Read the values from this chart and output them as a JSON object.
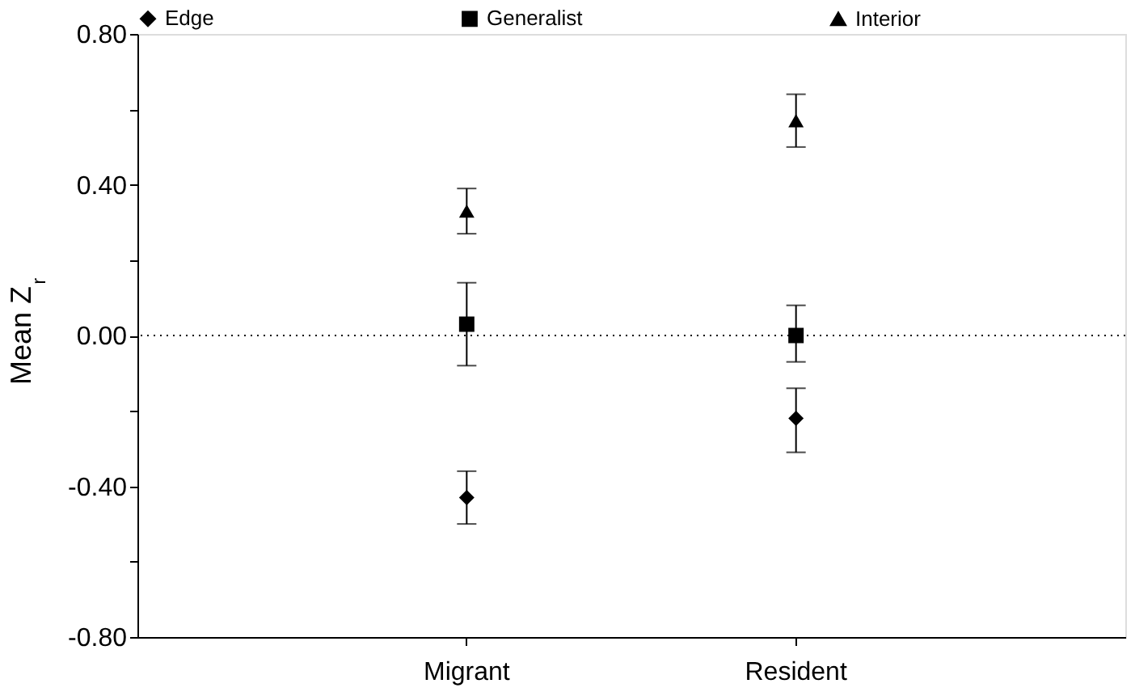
{
  "chart_data": {
    "type": "scatter",
    "ylabel": "Mean Z$_{r}$",
    "categories": [
      "Migrant",
      "Resident"
    ],
    "series": [
      {
        "name": "Edge",
        "color": "#000000",
        "marker": "diamond",
        "values": [
          -0.43,
          -0.22
        ],
        "errors": [
          [
            -0.5,
            -0.36
          ],
          [
            -0.31,
            -0.14
          ]
        ]
      },
      {
        "name": "Generalist",
        "color": "#000000",
        "marker": "square",
        "values": [
          0.03,
          0.0
        ],
        "errors": [
          [
            -0.08,
            0.14
          ],
          [
            -0.07,
            0.08
          ]
        ]
      },
      {
        "name": "Interior",
        "color": "#000000",
        "marker": "triangle",
        "values": [
          0.33,
          0.57
        ],
        "errors": [
          [
            0.27,
            0.39
          ],
          [
            0.5,
            0.64
          ]
        ]
      }
    ],
    "ylim": [
      -0.8,
      0.8
    ],
    "yticks": [
      {
        "value": -0.8,
        "label": "-0.80"
      },
      {
        "value": -0.6,
        "label": null
      },
      {
        "value": -0.4,
        "label": "-0.40"
      },
      {
        "value": -0.2,
        "label": null
      },
      {
        "value": 0,
        "label": "0.00"
      },
      {
        "value": 0.2,
        "label": null
      },
      {
        "value": 0.4,
        "label": "0.40"
      },
      {
        "value": 0.6,
        "label": null
      },
      {
        "value": 0.8,
        "label": "0.80"
      }
    ],
    "ref_lines": [
      {
        "axis": "y",
        "value": 0,
        "line_style": "dotted",
        "color": "#000000"
      }
    ],
    "legend": "top",
    "grid": false
  }
}
